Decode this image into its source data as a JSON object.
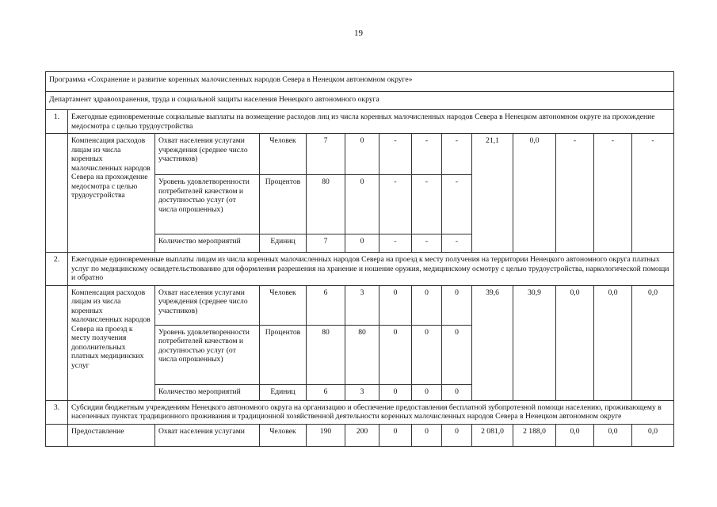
{
  "page_number": "19",
  "program": "Программа «Сохранение и развитие коренных малочисленных народов Севера в Ненецком автономном округе»",
  "department": "Департамент здравоохранения, труда и социальной защиты населения Ненецкого автономного округа",
  "sections": [
    {
      "num": "1.",
      "title": "Ежегодные единовременные социальные выплаты на возмещение расходов лиц из числа коренных малочисленных народов Севера в Ненецком автономном округе на прохождение медосмотра с целью трудоустройства",
      "service": "Компенсация расходов лицам из числа коренных малочисленных народов Севера на прохождение медосмотра с целью трудоустройства",
      "indicators": [
        {
          "name": "Охват населения услугами учреждения (среднее число участников)",
          "unit": "Человек",
          "values": [
            "7",
            "0",
            "-",
            "-",
            "-"
          ]
        },
        {
          "name": "Уровень удовлетворенности потребителей качеством и доступностью услуг (от числа опрошенных)",
          "unit": "Процентов",
          "values": [
            "80",
            "0",
            "-",
            "-",
            "-"
          ]
        },
        {
          "name": "Количество мероприятий",
          "unit": "Единиц",
          "values": [
            "7",
            "0",
            "-",
            "-",
            "-"
          ]
        }
      ],
      "finance": [
        "21,1",
        "0,0",
        "-",
        "-",
        "-"
      ]
    },
    {
      "num": "2.",
      "title": "Ежегодные единовременные выплаты лицам из числа коренных малочисленных народов Севера на проезд к месту получения на территории Ненецкого автономного округа платных услуг по медицинскому освидетельствованию для оформления разрешения на хранение и ношение оружия, медицинскому осмотру с целью трудоустройства, наркологической помощи и обратно",
      "service": "Компенсация расходов лицам из числа коренных малочисленных народов Севера на проезд к месту получения дополнительных платных медицинских услуг",
      "indicators": [
        {
          "name": "Охват населения услугами учреждения (среднее число участников)",
          "unit": "Человек",
          "values": [
            "6",
            "3",
            "0",
            "0",
            "0"
          ]
        },
        {
          "name": "Уровень удовлетворенности потребителей качеством и доступностью услуг (от числа опрошенных)",
          "unit": "Процентов",
          "values": [
            "80",
            "80",
            "0",
            "0",
            "0"
          ]
        },
        {
          "name": "Количество мероприятий",
          "unit": "Единиц",
          "values": [
            "6",
            "3",
            "0",
            "0",
            "0"
          ]
        }
      ],
      "finance": [
        "39,6",
        "30,9",
        "0,0",
        "0,0",
        "0,0"
      ]
    },
    {
      "num": "3.",
      "title": "Субсидии бюджетным учреждениям Ненецкого автономного округа на организацию и обеспечение предоставления бесплатной зубопротезной помощи населению, проживающему в населенных пунктах традиционного проживания и традиционной хозяйственной деятельности коренных малочисленных народов Севера в Ненецком автономном округе",
      "service": "Предоставление",
      "indicators": [
        {
          "name": "Охват населения услугами",
          "unit": "Человек",
          "values": [
            "190",
            "200",
            "0",
            "0",
            "0"
          ]
        }
      ],
      "finance": [
        "2 081,0",
        "2 188,0",
        "0,0",
        "0,0",
        "0,0"
      ]
    }
  ]
}
